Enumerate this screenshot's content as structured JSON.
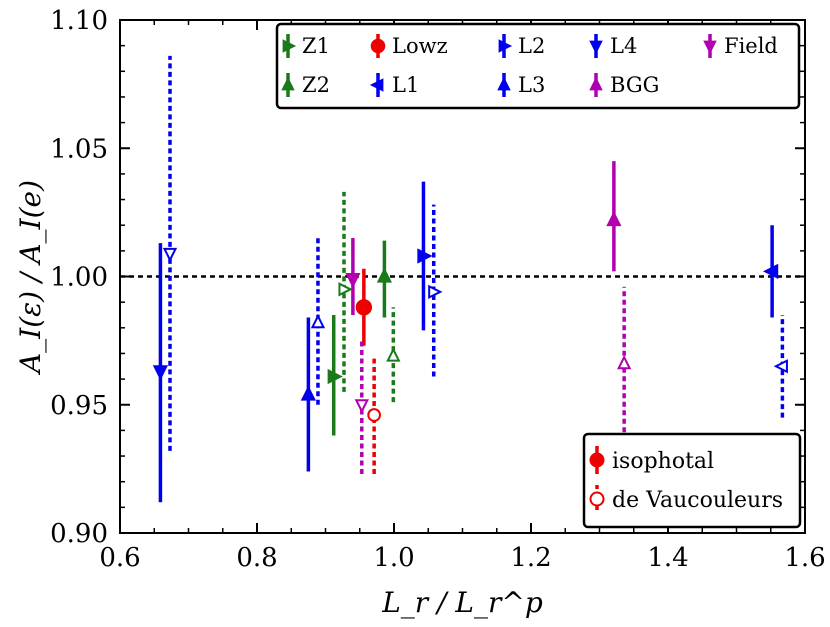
{
  "chart_data": {
    "type": "scatter",
    "title": "",
    "xlabel": "L_r / L_r^p",
    "ylabel": "A_I(ε) / A_I(e)",
    "xlim": [
      0.6,
      1.6
    ],
    "ylim": [
      0.9,
      1.1
    ],
    "xticks": [
      0.6,
      0.8,
      1.0,
      1.2,
      1.4,
      1.6
    ],
    "xtick_labels": [
      "0.6",
      "0.8",
      "1.0",
      "1.2",
      "1.4",
      "1.6"
    ],
    "yticks": [
      0.9,
      0.95,
      1.0,
      1.05,
      1.1
    ],
    "ytick_labels": [
      "0.90",
      "0.95",
      "1.00",
      "1.05",
      "1.10"
    ],
    "reference_line": {
      "y": 1.0,
      "style": "dotted",
      "color": "#000000"
    },
    "series": [
      {
        "name": "Z1",
        "color": "#1a7a1a",
        "marker": "triangle-right",
        "iso": {
          "x": 0.912,
          "y": 0.961,
          "ylo": 0.938,
          "yhi": 0.985
        },
        "dev": {
          "x": 0.927,
          "y": 0.995,
          "ylo": 0.955,
          "yhi": 1.033
        }
      },
      {
        "name": "Z2",
        "color": "#1a7a1a",
        "marker": "triangle-up",
        "iso": {
          "x": 0.986,
          "y": 1.0,
          "ylo": 0.984,
          "yhi": 1.014
        },
        "dev": {
          "x": 0.999,
          "y": 0.969,
          "ylo": 0.951,
          "yhi": 0.988
        }
      },
      {
        "name": "Lowz",
        "color": "#ee0000",
        "marker": "circle",
        "iso": {
          "x": 0.956,
          "y": 0.988,
          "ylo": 0.973,
          "yhi": 1.003
        },
        "dev": {
          "x": 0.971,
          "y": 0.946,
          "ylo": 0.923,
          "yhi": 0.968
        }
      },
      {
        "name": "L1",
        "color": "#0000ee",
        "marker": "triangle-left",
        "iso": {
          "x": 1.552,
          "y": 1.002,
          "ylo": 0.984,
          "yhi": 1.02
        },
        "dev": {
          "x": 1.567,
          "y": 0.965,
          "ylo": 0.945,
          "yhi": 0.985
        }
      },
      {
        "name": "L2",
        "color": "#0000ee",
        "marker": "triangle-right",
        "iso": {
          "x": 1.043,
          "y": 1.008,
          "ylo": 0.979,
          "yhi": 1.037
        },
        "dev": {
          "x": 1.058,
          "y": 0.994,
          "ylo": 0.961,
          "yhi": 1.028
        }
      },
      {
        "name": "L3",
        "color": "#0000ee",
        "marker": "triangle-up",
        "iso": {
          "x": 0.875,
          "y": 0.954,
          "ylo": 0.924,
          "yhi": 0.984
        },
        "dev": {
          "x": 0.889,
          "y": 0.982,
          "ylo": 0.95,
          "yhi": 1.015
        }
      },
      {
        "name": "L4",
        "color": "#0000ee",
        "marker": "triangle-down",
        "iso": {
          "x": 0.659,
          "y": 0.963,
          "ylo": 0.912,
          "yhi": 1.013
        },
        "dev": {
          "x": 0.673,
          "y": 1.009,
          "ylo": 0.932,
          "yhi": 1.086
        }
      },
      {
        "name": "BGG",
        "color": "#b000b0",
        "marker": "triangle-up",
        "iso": {
          "x": 1.321,
          "y": 1.022,
          "ylo": 1.002,
          "yhi": 1.045
        },
        "dev": {
          "x": 1.336,
          "y": 0.966,
          "ylo": 0.926,
          "yhi": 0.996
        }
      },
      {
        "name": "Field",
        "color": "#b000b0",
        "marker": "triangle-down",
        "iso": {
          "x": 0.94,
          "y": 0.999,
          "ylo": 0.985,
          "yhi": 1.015
        },
        "dev": {
          "x": 0.953,
          "y": 0.95,
          "ylo": 0.923,
          "yhi": 0.975
        }
      }
    ],
    "legend_samples": {
      "title": "",
      "items": [
        "Z1",
        "Lowz",
        "L2",
        "L4",
        "Field",
        "Z2",
        "L1",
        "L3",
        "BGG"
      ],
      "position": "top-right"
    },
    "legend_methods": {
      "items": [
        {
          "label": "isophotal",
          "style": "solid",
          "marker": "filled-circle",
          "color": "#ee0000"
        },
        {
          "label": "de Vaucouleurs",
          "style": "dotted",
          "marker": "open-circle",
          "color": "#ee0000"
        }
      ],
      "position": "bottom-right"
    }
  }
}
